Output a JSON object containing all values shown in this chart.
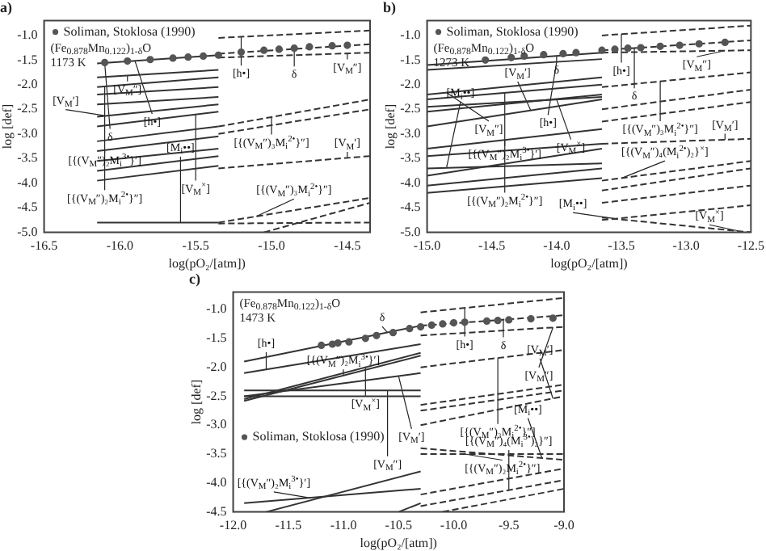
{
  "chart_data": [
    {
      "type": "line",
      "title": "a)",
      "xlabel": "log(pO₂/[atm])",
      "ylabel": "log [def]",
      "xlim": [
        -16.5,
        -14.35
      ],
      "ylim": [
        -5.0,
        -0.7
      ],
      "xticks": [
        -16.5,
        {
          "value": -16,
          "label": "-16.0"
        },
        -15.5,
        {
          "value": -15,
          "label": "-15.0"
        },
        -14.5
      ],
      "yticks": [
        {
          "value": -5,
          "label": "-5.0"
        },
        -4.5,
        {
          "value": -4,
          "label": "-4.0"
        },
        -3.5,
        {
          "value": -3,
          "label": "-3.0"
        },
        -2.5,
        {
          "value": -2,
          "label": "-2.0"
        },
        -1.5,
        {
          "value": -1,
          "label": "-1.0"
        }
      ],
      "legend": "top left",
      "annotations": [
        "(Fe$_{0.878}$Mn$_{0.122}$)$_{1-δ}$O",
        "1173 K",
        {
          "text": "[h•]",
          "x": -15.9,
          "y": -1.52
        },
        {
          "text": "δ",
          "x": -16.1,
          "y": -1.56
        },
        {
          "text": "[h•]",
          "x": -15.2,
          "y": -1.03
        },
        {
          "text": "δ",
          "x": -14.85,
          "y": -1.275
        },
        {
          "text": "[V$_{M}$″]",
          "x": -15.95,
          "y": -1.81
        },
        {
          "text": "[V$_{M}$″]",
          "x": -14.5,
          "y": -1.365
        },
        {
          "text": "[{(V$_{M}$″)₂M$_{i}$$^{3•}$}′]",
          "x": -16.1,
          "y": -2.04
        },
        {
          "text": "[{(V$_{M}$″)₃M$_{i}$$^{2•}$}″]",
          "x": -15.0,
          "y": -2.66
        },
        {
          "text": "[V$_{M}$′]",
          "x": -16.1,
          "y": -2.63
        },
        {
          "text": "[V$_{M}$$^{×}$]",
          "x": -15.5,
          "y": -2.61
        },
        {
          "text": "[V$_{M}$′]",
          "x": -14.5,
          "y": -3.49
        },
        {
          "text": "[{(V$_{M}$″)₂M$_{i}$$^{2•}$}″]",
          "x": -16.1,
          "y": -3.33
        },
        {
          "text": "[M$_{i}$••]",
          "x": -15.6,
          "y": -4.8
        },
        {
          "text": "[{(V$_{M}$″)₃M$_{i}$$^{2•}$}″]",
          "x": -15.1,
          "y": -4.675
        }
      ],
      "series": [
        {
          "type": "scatter",
          "name": "Soliman, Stoklosa (1990)",
          "color": "#555555",
          "marker": "circle",
          "x": [
            -16.1,
            -15.95,
            -15.8,
            -15.65,
            -15.55,
            -15.45,
            -15.35,
            -15.2,
            -15.05,
            -14.95,
            -14.85,
            -14.75,
            -14.6,
            -14.5
          ],
          "values": [
            -1.55,
            -1.52,
            -1.49,
            -1.46,
            -1.44,
            -1.42,
            -1.4,
            -1.34,
            -1.3,
            -1.28,
            -1.26,
            -1.23,
            -1.21,
            -1.2
          ]
        },
        {
          "color": "#333333",
          "x": [
            -16.15,
            -15.35
          ],
          "values": [
            -1.57,
            -1.4
          ]
        },
        {
          "color": "#333333",
          "x": [
            -16.15,
            -15.35
          ],
          "values": [
            -1.85,
            -1.7
          ]
        },
        {
          "color": "#333333",
          "x": [
            -16.15,
            -15.35
          ],
          "values": [
            -2.05,
            -1.85
          ]
        },
        {
          "color": "#333333",
          "x": [
            -16.15,
            -15.35
          ],
          "values": [
            -2.2,
            -2.05
          ]
        },
        {
          "color": "#333333",
          "x": [
            -16.15,
            -15.35
          ],
          "values": [
            -2.4,
            -2.25
          ]
        },
        {
          "color": "#333333",
          "x": [
            -16.15,
            -15.35
          ],
          "values": [
            -2.65,
            -2.4
          ]
        },
        {
          "color": "#333333",
          "x": [
            -16.15,
            -15.35
          ],
          "values": [
            -2.85,
            -2.55
          ]
        },
        {
          "color": "#333333",
          "x": [
            -16.15,
            -15.35
          ],
          "values": [
            -3.15,
            -2.85
          ]
        },
        {
          "color": "#333333",
          "x": [
            -16.15,
            -15.35
          ],
          "values": [
            -3.35,
            -3.05
          ]
        },
        {
          "color": "#333333",
          "x": [
            -16.15,
            -15.35
          ],
          "values": [
            -3.55,
            -3.3
          ]
        },
        {
          "color": "#333333",
          "x": [
            -16.15,
            -15.35
          ],
          "values": [
            -3.75,
            -3.45
          ]
        },
        {
          "color": "#333333",
          "x": [
            -16.15,
            -15.35
          ],
          "values": [
            -3.95,
            -3.65
          ]
        },
        {
          "color": "#333333",
          "x": [
            -16.15,
            -15.35
          ],
          "values": [
            -4.8,
            -4.8
          ]
        },
        {
          "color": "#333333",
          "line_style": "dashed",
          "x": [
            -15.35,
            -14.35
          ],
          "values": [
            -1.05,
            -0.9
          ]
        },
        {
          "color": "#333333",
          "line_style": "dashed",
          "x": [
            -15.35,
            -14.35
          ],
          "values": [
            -1.37,
            -1.18
          ]
        },
        {
          "color": "#333333",
          "line_style": "dashed",
          "x": [
            -15.35,
            -14.35
          ],
          "values": [
            -1.45,
            -1.35
          ]
        },
        {
          "color": "#333333",
          "line_style": "dashed",
          "x": [
            -15.35,
            -14.35
          ],
          "values": [
            -2.85,
            -2.3
          ]
        },
        {
          "color": "#333333",
          "line_style": "dashed",
          "x": [
            -15.35,
            -14.35
          ],
          "values": [
            -3.0,
            -2.5
          ]
        },
        {
          "color": "#333333",
          "line_style": "dashed",
          "x": [
            -15.35,
            -14.35
          ],
          "values": [
            -3.7,
            -3.45
          ]
        },
        {
          "color": "#333333",
          "line_style": "dashed",
          "x": [
            -15.35,
            -14.35
          ],
          "values": [
            -4.8,
            -4.3
          ]
        },
        {
          "color": "#333333",
          "line_style": "dashed",
          "x": [
            -15.05,
            -14.35
          ],
          "values": [
            -5.0,
            -4.4
          ]
        },
        {
          "color": "#333333",
          "line_style": "dashed",
          "x": [
            -15.35,
            -14.35
          ],
          "values": [
            -4.82,
            -4.8
          ]
        }
      ]
    },
    {
      "type": "line",
      "title": "b)",
      "xlabel": "log(pO₂/[atm])",
      "ylabel": "log [def]",
      "xlim": [
        -15.0,
        -12.5
      ],
      "ylim": [
        -5.0,
        -0.7
      ],
      "xticks": [
        {
          "value": -15,
          "label": "-15.0"
        },
        -14.5,
        {
          "value": -14,
          "label": "-14.0"
        },
        -13.5,
        {
          "value": -13,
          "label": "-13.0"
        },
        -12.5
      ],
      "yticks": [
        {
          "value": -5,
          "label": "-5.0"
        },
        -4.5,
        {
          "value": -4,
          "label": "-4.0"
        },
        -3.5,
        {
          "value": -3,
          "label": "-3.0"
        },
        -2.5,
        {
          "value": -2,
          "label": "-2.0"
        },
        -1.5,
        {
          "value": -1,
          "label": "-1.0"
        }
      ],
      "legend": "top left",
      "annotations": [
        "(Fe$_{0.878}$Mn$_{0.122}$)$_{1-δ}$O",
        "1273 K",
        {
          "text": "δ",
          "x": -14.0,
          "y": -1.42
        },
        {
          "text": "[h•]",
          "x": -14.0,
          "y": -1.54
        },
        {
          "text": "[h•]",
          "x": -13.5,
          "y": -0.97
        },
        {
          "text": "δ",
          "x": -13.4,
          "y": -1.26
        },
        {
          "text": "[V$_{M}$″]",
          "x": -14.85,
          "y": -2.16
        },
        {
          "text": "[V$_{M}$″]",
          "x": -12.7,
          "y": -1.31
        },
        {
          "text": "[{(V$_{M}$″)₂M$_{i}$$^{3•}$}′]",
          "x": -14.4,
          "y": -2.17
        },
        {
          "text": "[{(V$_{M}$″)₃M$_{i}$$^{2•}$}″]",
          "x": -13.2,
          "y": -1.93
        },
        {
          "text": "[V$_{M}$′]",
          "x": -14.2,
          "y": -2.52
        },
        {
          "text": "[V$_{M}$$^{×}$]",
          "x": -14.0,
          "y": -2.3
        },
        {
          "text": "[V$_{M}$′]",
          "x": -12.7,
          "y": -3.12
        },
        {
          "text": "[{(V$_{M}$″)₂M$_{i}$$^{2•}$}″]",
          "x": -14.4,
          "y": -3.12
        },
        {
          "text": "[M$_{i}$••]",
          "x": -14.85,
          "y": -3.69
        },
        {
          "text": "[{(V$_{M}$″)₄(M$_{i}$$^{2•}$)₂}$^{×}$]",
          "x": -13.5,
          "y": -3.9
        },
        {
          "text": "[M$_{i}$••]",
          "x": -13.55,
          "y": -4.72
        },
        {
          "text": "[V$_{M}$$^{×}$]",
          "x": -12.6,
          "y": -4.97
        }
      ],
      "series": [
        {
          "type": "scatter",
          "name": "Soliman, Stoklosa (1990)",
          "color": "#555555",
          "marker": "circle",
          "x": [
            -14.55,
            -14.35,
            -14.25,
            -14.1,
            -13.95,
            -13.85,
            -13.65,
            -13.55,
            -13.45,
            -13.35,
            -13.2,
            -13.05,
            -12.9,
            -12.7
          ],
          "values": [
            -1.5,
            -1.45,
            -1.42,
            -1.39,
            -1.37,
            -1.35,
            -1.3,
            -1.28,
            -1.26,
            -1.25,
            -1.22,
            -1.2,
            -1.17,
            -1.14
          ]
        },
        {
          "color": "#333333",
          "x": [
            -15.0,
            -13.65
          ],
          "values": [
            -1.6,
            -1.35
          ]
        },
        {
          "color": "#333333",
          "x": [
            -15.0,
            -13.65
          ],
          "values": [
            -1.7,
            -1.48
          ]
        },
        {
          "color": "#333333",
          "x": [
            -15.0,
            -13.65
          ],
          "values": [
            -2.2,
            -1.85
          ]
        },
        {
          "color": "#333333",
          "x": [
            -15.0,
            -13.65
          ],
          "values": [
            -2.3,
            -2.0
          ]
        },
        {
          "color": "#333333",
          "x": [
            -15.0,
            -13.65
          ],
          "values": [
            -2.45,
            -2.25
          ]
        },
        {
          "color": "#333333",
          "x": [
            -15.0,
            -13.65
          ],
          "values": [
            -2.55,
            -2.2
          ]
        },
        {
          "color": "#333333",
          "x": [
            -15.0,
            -13.65
          ],
          "values": [
            -2.85,
            -2.3
          ]
        },
        {
          "color": "#333333",
          "x": [
            -15.0,
            -13.65
          ],
          "values": [
            -3.3,
            -2.9
          ]
        },
        {
          "color": "#333333",
          "x": [
            -15.0,
            -13.65
          ],
          "values": [
            -3.45,
            -3.2
          ]
        },
        {
          "color": "#333333",
          "x": [
            -15.0,
            -13.65
          ],
          "values": [
            -3.7,
            -3.6
          ]
        },
        {
          "color": "#333333",
          "x": [
            -15.0,
            -13.65
          ],
          "values": [
            -3.85,
            -3.3
          ]
        },
        {
          "color": "#333333",
          "x": [
            -15.0,
            -13.65
          ],
          "values": [
            -4.05,
            -3.7
          ]
        },
        {
          "color": "#333333",
          "x": [
            -15.0,
            -13.65
          ],
          "values": [
            -4.2,
            -3.9
          ]
        },
        {
          "color": "#333333",
          "line_style": "dashed",
          "x": [
            -13.65,
            -12.5
          ],
          "values": [
            -1.0,
            -0.8
          ]
        },
        {
          "color": "#333333",
          "line_style": "dashed",
          "x": [
            -13.65,
            -12.5
          ],
          "values": [
            -1.3,
            -1.1
          ]
        },
        {
          "color": "#333333",
          "line_style": "dashed",
          "x": [
            -13.65,
            -12.5
          ],
          "values": [
            -1.35,
            -1.3
          ]
        },
        {
          "color": "#333333",
          "line_style": "dashed",
          "x": [
            -13.65,
            -12.5
          ],
          "values": [
            -2.05,
            -1.75
          ]
        },
        {
          "color": "#333333",
          "line_style": "dashed",
          "x": [
            -13.65,
            -12.5
          ],
          "values": [
            -2.5,
            -2.1
          ]
        },
        {
          "color": "#333333",
          "line_style": "dashed",
          "x": [
            -13.65,
            -12.5
          ],
          "values": [
            -2.75,
            -2.35
          ]
        },
        {
          "color": "#333333",
          "line_style": "dashed",
          "x": [
            -13.65,
            -12.5
          ],
          "values": [
            -3.2,
            -3.1
          ]
        },
        {
          "color": "#333333",
          "line_style": "dashed",
          "x": [
            -13.65,
            -12.5
          ],
          "values": [
            -3.95,
            -3.55
          ]
        },
        {
          "color": "#333333",
          "line_style": "dashed",
          "x": [
            -13.65,
            -12.5
          ],
          "values": [
            -4.15,
            -3.7
          ]
        },
        {
          "color": "#333333",
          "line_style": "dashed",
          "x": [
            -13.65,
            -12.5
          ],
          "values": [
            -4.4,
            -4.05
          ]
        },
        {
          "color": "#333333",
          "line_style": "dashed",
          "x": [
            -13.65,
            -12.5
          ],
          "values": [
            -4.75,
            -4.45
          ]
        },
        {
          "color": "#333333",
          "line_style": "dashed",
          "x": [
            -13.65,
            -12.5
          ],
          "values": [
            -4.7,
            -5.0
          ]
        }
      ]
    },
    {
      "type": "line",
      "title": "c)",
      "xlabel": "log(pO₂/[atm])",
      "ylabel": "log [def]",
      "xlim": [
        -12.0,
        -9.0
      ],
      "ylim": [
        -4.5,
        -0.7
      ],
      "xticks": [
        {
          "value": -12,
          "label": "-12.0"
        },
        -11.5,
        {
          "value": -11,
          "label": "-11.0"
        },
        -10.5,
        {
          "value": -10,
          "label": "-10.0"
        },
        -9.5,
        {
          "value": -9,
          "label": "-9.0"
        }
      ],
      "yticks": [
        -4.5,
        {
          "value": -4,
          "label": "-4.0"
        },
        -3.5,
        {
          "value": -3,
          "label": "-3.0"
        },
        -2.5,
        {
          "value": -2,
          "label": "-2.0"
        },
        -1.5,
        {
          "value": -1,
          "label": "-1.0"
        }
      ],
      "legend": "left",
      "annotations": [
        "(Fe$_{0.878}$Mn$_{0.122}$)$_{1-δ}$O",
        "1473 K",
        {
          "text": "δ",
          "x": -10.6,
          "y": -1.4
        },
        {
          "text": "[h•]",
          "x": -11.7,
          "y": -2.04
        },
        {
          "text": "[h•]",
          "x": -9.9,
          "y": -0.97
        },
        {
          "text": "δ",
          "x": -9.55,
          "y": -1.18
        },
        {
          "text": "[V$_{M}$$^{×}$]",
          "x": -10.8,
          "y": -2.0
        },
        {
          "text": "[V$_{M}$″]",
          "x": -9.1,
          "y": -1.31
        },
        {
          "text": "[{(V$_{M}$″)₂M$_{i}$$^{3•}$}′]",
          "x": -11.0,
          "y": -2.14
        },
        {
          "text": "[{(V$_{M}$″)₃M$_{i}$$^{2•}$}″]",
          "x": -9.6,
          "y": -1.84
        },
        {
          "text": "[V$_{M}$′]",
          "x": -10.5,
          "y": -2.15
        },
        {
          "text": "[V$_{M}$″]",
          "x": -10.6,
          "y": -2.4
        },
        {
          "text": "[V$_{M}$′]",
          "x": -9.1,
          "y": -2.54
        },
        {
          "text": "[{(V$_{M}$″)₂M$_{i}$$^{2•}$}″]",
          "x": -9.9,
          "y": -3.5
        },
        {
          "text": "[M$_{i}$••]",
          "x": -9.2,
          "y": -3.57
        },
        {
          "text": "[{(V$_{M}$″)₂M$_{i}$$^{3•}$}′]",
          "x": -11.3,
          "y": -4.26
        },
        {
          "text": "[{(V$_{M}$″)₄(M$_{i}$$^{3•}$)₂}″]",
          "x": -9.5,
          "y": -4.12
        }
      ],
      "series": [
        {
          "type": "scatter",
          "name": "Soliman, Stoklosa (1990)",
          "color": "#555555",
          "marker": "circle",
          "x": [
            -11.2,
            -11.1,
            -11.05,
            -10.95,
            -10.8,
            -10.7,
            -10.55,
            -10.4,
            -10.3,
            -10.2,
            -10.1,
            -10.0,
            -9.9,
            -9.7,
            -9.6,
            -9.5,
            -9.3,
            -9.1
          ],
          "values": [
            -1.62,
            -1.6,
            -1.58,
            -1.56,
            -1.5,
            -1.45,
            -1.4,
            -1.33,
            -1.3,
            -1.27,
            -1.25,
            -1.23,
            -1.22,
            -1.2,
            -1.19,
            -1.18,
            -1.16,
            -1.15
          ]
        },
        {
          "color": "#333333",
          "x": [
            -11.9,
            -10.3
          ],
          "values": [
            -1.9,
            -1.28
          ]
        },
        {
          "color": "#333333",
          "x": [
            -11.9,
            -10.3
          ],
          "values": [
            -2.1,
            -1.6
          ]
        },
        {
          "color": "#333333",
          "x": [
            -11.9,
            -10.3
          ],
          "values": [
            -2.55,
            -1.75
          ]
        },
        {
          "color": "#333333",
          "x": [
            -11.9,
            -10.3
          ],
          "values": [
            -2.58,
            -1.8
          ]
        },
        {
          "color": "#333333",
          "x": [
            -11.9,
            -10.3
          ],
          "values": [
            -2.5,
            -2.1
          ]
        },
        {
          "color": "#333333",
          "x": [
            -11.9,
            -10.3
          ],
          "values": [
            -2.4,
            -2.4
          ]
        },
        {
          "color": "#333333",
          "x": [
            -11.9,
            -10.3
          ],
          "values": [
            -2.5,
            -2.5
          ]
        },
        {
          "color": "#333333",
          "x": [
            -11.7,
            -10.3
          ],
          "values": [
            -4.5,
            -3.8
          ]
        },
        {
          "color": "#333333",
          "x": [
            -11.9,
            -10.3
          ],
          "values": [
            -4.35,
            -4.1
          ]
        },
        {
          "color": "#333333",
          "x": [
            -10.5,
            -10.3
          ],
          "values": [
            -4.5,
            -4.35
          ]
        },
        {
          "color": "#333333",
          "line_style": "dashed",
          "x": [
            -10.3,
            -9.0
          ],
          "values": [
            -1.05,
            -0.8
          ]
        },
        {
          "color": "#333333",
          "line_style": "dashed",
          "x": [
            -10.3,
            -9.0
          ],
          "values": [
            -1.28,
            -1.1
          ]
        },
        {
          "color": "#333333",
          "line_style": "dashed",
          "x": [
            -10.3,
            -9.0
          ],
          "values": [
            -1.45,
            -1.3
          ]
        },
        {
          "color": "#333333",
          "line_style": "dashed",
          "x": [
            -10.3,
            -9.0
          ],
          "values": [
            -2.0,
            -1.7
          ]
        },
        {
          "color": "#333333",
          "line_style": "dashed",
          "x": [
            -10.3,
            -9.0
          ],
          "values": [
            -2.65,
            -2.3
          ]
        },
        {
          "color": "#333333",
          "line_style": "dashed",
          "x": [
            -10.3,
            -9.0
          ],
          "values": [
            -2.75,
            -2.4
          ]
        },
        {
          "color": "#333333",
          "line_style": "dashed",
          "x": [
            -10.3,
            -9.0
          ],
          "values": [
            -3.0,
            -2.5
          ]
        },
        {
          "color": "#333333",
          "line_style": "dashed",
          "x": [
            -10.3,
            -9.0
          ],
          "values": [
            -3.4,
            -3.6
          ]
        },
        {
          "color": "#333333",
          "line_style": "dashed",
          "x": [
            -10.3,
            -9.0
          ],
          "values": [
            -3.5,
            -3.5
          ]
        },
        {
          "color": "#333333",
          "line_style": "dashed",
          "x": [
            -10.3,
            -9.0
          ],
          "values": [
            -4.2,
            -3.75
          ]
        },
        {
          "color": "#333333",
          "line_style": "dashed",
          "x": [
            -10.3,
            -9.0
          ],
          "values": [
            -4.4,
            -3.95
          ]
        },
        {
          "color": "#333333",
          "line_style": "dashed",
          "x": [
            -10.1,
            -9.0
          ],
          "values": [
            -4.5,
            -4.1
          ]
        }
      ]
    }
  ]
}
